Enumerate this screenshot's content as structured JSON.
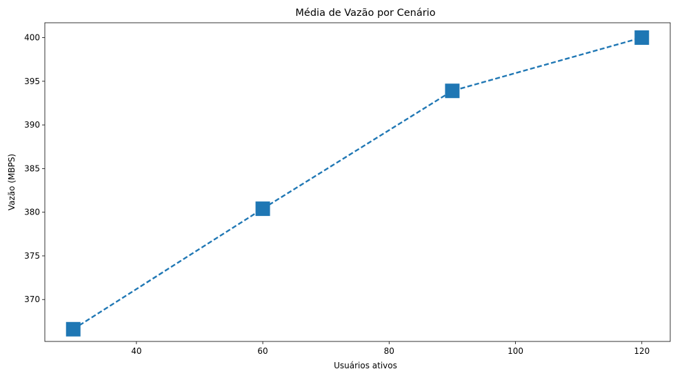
{
  "chart_data": {
    "type": "line",
    "title": "Média de Vazão por Cenário",
    "xlabel": "Usuários ativos",
    "ylabel": "Vazão (MBPS)",
    "xlim": [
      25.5,
      124.5
    ],
    "ylim": [
      365.2,
      401.7
    ],
    "xticks": [
      40,
      60,
      80,
      100,
      120
    ],
    "yticks": [
      370,
      375,
      380,
      385,
      390,
      395,
      400
    ],
    "grid": false,
    "line_style": "dashed",
    "marker": "square",
    "color": "#1f77b4",
    "series": [
      {
        "x": [
          30,
          60,
          90,
          120
        ],
        "y": [
          366.6,
          380.4,
          393.9,
          400.0
        ]
      }
    ]
  }
}
